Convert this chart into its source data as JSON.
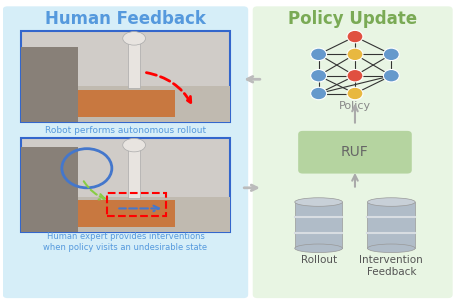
{
  "left_panel_bg": "#d6eef8",
  "right_panel_bg": "#e8f5e3",
  "left_title": "Human Feedback",
  "right_title": "Policy Update",
  "left_title_color": "#5599dd",
  "right_title_color": "#7aaa55",
  "caption1": "Robot performs autonomous rollout",
  "caption2": "Human expert provides interventions\nwhen policy visits an undesirable state",
  "caption_color": "#5599dd",
  "arrow_left_color": "#bbbbbb",
  "arrow_right_color": "#bbbbbb",
  "ruf_box_color": "#b5d4a0",
  "ruf_text": "RUF",
  "ruf_text_color": "#666666",
  "policy_text": "Policy",
  "policy_text_color": "#888888",
  "rollout_text": "Rollout",
  "intervention_text": "Intervention\nFeedback",
  "db_color_top": "#c8d0d8",
  "db_color_body": "#b0bcc8",
  "db_color_stripe": "#d8dde2",
  "img_border_color": "#3366cc",
  "nn_edge_color": "#333333",
  "up_arrow_color": "#aaaaaa",
  "figure_width": 4.6,
  "figure_height": 3.08
}
